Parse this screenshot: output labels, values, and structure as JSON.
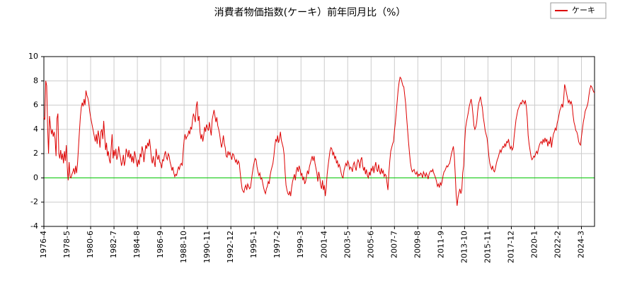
{
  "chart_data": {
    "type": "line",
    "title": "消費者物価指数(ケーキ）前年同月比（%）",
    "categories": [
      "1976-4",
      null,
      null,
      null,
      null,
      null,
      null,
      null,
      null,
      null,
      null,
      null,
      null,
      null,
      null,
      null,
      null,
      null,
      null,
      null,
      null,
      null,
      null,
      null,
      null,
      "1978-5",
      null,
      null,
      null,
      null,
      null,
      null,
      null,
      null,
      null,
      null,
      null,
      null,
      null,
      null,
      null,
      null,
      null,
      null,
      null,
      null,
      null,
      null,
      null,
      null,
      "1980-6",
      null,
      null,
      null,
      null,
      null,
      null,
      null,
      null,
      null,
      null,
      null,
      null,
      null,
      null,
      null,
      null,
      null,
      null,
      null,
      null,
      null,
      null,
      null,
      null,
      "1982-7",
      null,
      null,
      null,
      null,
      null,
      null,
      null,
      null,
      null,
      null,
      null,
      null,
      null,
      null,
      null,
      null,
      null,
      null,
      null,
      null,
      null,
      null,
      null,
      null,
      "1984-8",
      null,
      null,
      null,
      null,
      null,
      null,
      null,
      null,
      null,
      null,
      null,
      null,
      null,
      null,
      null,
      null,
      null,
      null,
      null,
      null,
      null,
      null,
      null,
      null,
      "1986-9",
      null,
      null,
      null,
      null,
      null,
      null,
      null,
      null,
      null,
      null,
      null,
      null,
      null,
      null,
      null,
      null,
      null,
      null,
      null,
      null,
      null,
      null,
      null,
      null,
      "1988-10",
      null,
      null,
      null,
      null,
      null,
      null,
      null,
      null,
      null,
      null,
      null,
      null,
      null,
      null,
      null,
      null,
      null,
      null,
      null,
      null,
      null,
      null,
      null,
      null,
      "1990-11",
      null,
      null,
      null,
      null,
      null,
      null,
      null,
      null,
      null,
      null,
      null,
      null,
      null,
      null,
      null,
      null,
      null,
      null,
      null,
      null,
      null,
      null,
      null,
      null,
      "1992-12",
      null,
      null,
      null,
      null,
      null,
      null,
      null,
      null,
      null,
      null,
      null,
      null,
      null,
      null,
      null,
      null,
      null,
      null,
      null,
      null,
      null,
      null,
      null,
      null,
      "1995-1",
      null,
      null,
      null,
      null,
      null,
      null,
      null,
      null,
      null,
      null,
      null,
      null,
      null,
      null,
      null,
      null,
      null,
      null,
      null,
      null,
      null,
      null,
      null,
      null,
      "1997-2",
      null,
      null,
      null,
      null,
      null,
      null,
      null,
      null,
      null,
      null,
      null,
      null,
      null,
      null,
      null,
      null,
      null,
      null,
      null,
      null,
      null,
      null,
      null,
      null,
      "1999-3",
      null,
      null,
      null,
      null,
      null,
      null,
      null,
      null,
      null,
      null,
      null,
      null,
      null,
      null,
      null,
      null,
      null,
      null,
      null,
      null,
      null,
      null,
      null,
      null,
      "2001-4",
      null,
      null,
      null,
      null,
      null,
      null,
      null,
      null,
      null,
      null,
      null,
      null,
      null,
      null,
      null,
      null,
      null,
      null,
      null,
      null,
      null,
      null,
      null,
      null,
      "2003-5",
      null,
      null,
      null,
      null,
      null,
      null,
      null,
      null,
      null,
      null,
      null,
      null,
      null,
      null,
      null,
      null,
      null,
      null,
      null,
      null,
      null,
      null,
      null,
      null,
      "2005-6",
      null,
      null,
      null,
      null,
      null,
      null,
      null,
      null,
      null,
      null,
      null,
      null,
      null,
      null,
      null,
      null,
      null,
      null,
      null,
      null,
      null,
      null,
      null,
      null,
      "2007-7",
      null,
      null,
      null,
      null,
      null,
      null,
      null,
      null,
      null,
      null,
      null,
      null,
      null,
      null,
      null,
      null,
      null,
      null,
      null,
      null,
      null,
      null,
      null,
      null,
      "2009-8",
      null,
      null,
      null,
      null,
      null,
      null,
      null,
      null,
      null,
      null,
      null,
      null,
      null,
      null,
      null,
      null,
      null,
      null,
      null,
      null,
      null,
      null,
      null,
      null,
      "2011-9",
      null,
      null,
      null,
      null,
      null,
      null,
      null,
      null,
      null,
      null,
      null,
      null,
      null,
      null,
      null,
      null,
      null,
      null,
      null,
      null,
      null,
      null,
      null,
      null,
      "2013-10",
      null,
      null,
      null,
      null,
      null,
      null,
      null,
      null,
      null,
      null,
      null,
      null,
      null,
      null,
      null,
      null,
      null,
      null,
      null,
      null,
      null,
      null,
      null,
      null,
      "2015-11",
      null,
      null,
      null,
      null,
      null,
      null,
      null,
      null,
      null,
      null,
      null,
      null,
      null,
      null,
      null,
      null,
      null,
      null,
      null,
      null,
      null,
      null,
      null,
      null,
      "2017-12",
      null,
      null,
      null,
      null,
      null,
      null,
      null,
      null,
      null,
      null,
      null,
      null,
      null,
      null,
      null,
      null,
      null,
      null,
      null,
      null,
      null,
      null,
      null,
      null,
      "2020-1",
      null,
      null,
      null,
      null,
      null,
      null,
      null,
      null,
      null,
      null,
      null,
      null,
      null,
      null,
      null,
      null,
      null,
      null,
      null,
      null,
      null,
      null,
      null,
      null,
      "2022-2",
      null,
      null,
      null,
      null,
      null,
      null,
      null,
      null,
      null,
      null,
      null,
      null,
      null,
      null,
      null,
      null,
      null,
      null,
      null,
      null,
      null,
      null,
      null,
      null,
      "2024-3",
      null,
      null,
      null,
      null,
      null,
      null,
      null,
      null,
      null,
      null,
      null,
      null,
      null,
      null
    ],
    "series": [
      {
        "name": "ケーキ",
        "color": "#dd0000",
        "values": [
          5.0,
          4.8,
          8.0,
          7.6,
          4.2,
          2.0,
          5.1,
          4.3,
          3.6,
          4.0,
          3.4,
          3.8,
          3.2,
          1.8,
          4.9,
          5.3,
          2.0,
          1.6,
          2.3,
          1.5,
          2.0,
          1.2,
          2.2,
          1.4,
          2.7,
          0.9,
          -0.2,
          1.3,
          0.1,
          0.0,
          0.3,
          0.5,
          0.8,
          0.3,
          1.0,
          0.4,
          1.2,
          2.5,
          3.8,
          5.0,
          5.8,
          6.2,
          5.9,
          6.5,
          6.0,
          7.2,
          6.8,
          6.6,
          6.2,
          5.5,
          5.0,
          4.6,
          4.2,
          3.8,
          3.4,
          3.0,
          3.6,
          2.8,
          3.9,
          3.4,
          2.5,
          3.8,
          4.0,
          3.2,
          4.7,
          3.5,
          2.3,
          2.9,
          1.8,
          2.2,
          1.5,
          1.2,
          2.5,
          3.6,
          1.6,
          2.3,
          1.8,
          2.4,
          1.5,
          1.8,
          2.6,
          2.0,
          1.6,
          1.0,
          1.3,
          1.9,
          1.0,
          1.4,
          2.4,
          2.1,
          1.7,
          2.3,
          1.6,
          2.0,
          1.3,
          1.8,
          1.2,
          2.2,
          1.8,
          1.3,
          0.9,
          1.5,
          1.1,
          2.0,
          1.7,
          2.6,
          2.2,
          1.3,
          2.0,
          2.7,
          2.4,
          2.9,
          2.6,
          3.2,
          2.5,
          1.6,
          1.2,
          1.8,
          1.3,
          0.9,
          2.4,
          1.8,
          1.5,
          1.9,
          1.3,
          1.2,
          0.8,
          1.5,
          1.4,
          1.9,
          2.2,
          1.7,
          1.5,
          2.0,
          1.8,
          1.3,
          1.0,
          0.6,
          0.9,
          0.4,
          0.1,
          0.3,
          0.2,
          0.6,
          0.9,
          0.7,
          1.1,
          1.2,
          1.0,
          2.2,
          3.1,
          3.6,
          3.2,
          3.4,
          3.5,
          3.9,
          3.6,
          4.2,
          4.0,
          4.8,
          5.3,
          5.0,
          4.6,
          5.9,
          6.3,
          4.7,
          5.1,
          3.8,
          3.2,
          3.6,
          3.0,
          3.5,
          4.2,
          3.8,
          4.4,
          4.1,
          3.9,
          4.6,
          4.0,
          3.5,
          4.8,
          5.2,
          5.6,
          5.1,
          4.6,
          5.0,
          4.3,
          4.0,
          3.6,
          3.0,
          2.5,
          2.9,
          3.5,
          2.8,
          2.5,
          1.8,
          1.7,
          2.2,
          1.9,
          2.1,
          1.8,
          1.5,
          2.0,
          1.9,
          1.6,
          1.3,
          1.5,
          1.1,
          1.4,
          1.2,
          0.4,
          -0.3,
          -0.9,
          -1.1,
          -1.2,
          -0.8,
          -0.6,
          -1.0,
          -0.5,
          -0.7,
          -0.9,
          -0.8,
          -0.2,
          0.4,
          0.9,
          1.3,
          1.6,
          1.5,
          0.9,
          0.5,
          0.2,
          0.4,
          -0.1,
          0.0,
          -0.4,
          -0.8,
          -1.1,
          -1.3,
          -0.9,
          -0.7,
          -0.3,
          -0.5,
          0.2,
          0.6,
          0.9,
          1.2,
          1.8,
          2.6,
          3.2,
          3.0,
          3.5,
          2.9,
          3.2,
          3.8,
          3.1,
          2.8,
          2.5,
          1.9,
          0.5,
          -0.6,
          -1.0,
          -1.3,
          -1.4,
          -1.1,
          -1.5,
          -0.8,
          -0.3,
          0.0,
          0.3,
          -0.2,
          0.6,
          0.9,
          0.5,
          1.0,
          0.7,
          0.2,
          0.4,
          -0.2,
          0.1,
          -0.5,
          -0.3,
          0.2,
          0.6,
          0.3,
          0.9,
          1.2,
          1.5,
          1.8,
          1.4,
          1.8,
          1.2,
          0.8,
          0.4,
          -0.3,
          0.5,
          0.1,
          -0.6,
          -0.9,
          -0.2,
          -1.0,
          -0.6,
          -1.5,
          -0.8,
          0.3,
          1.0,
          1.6,
          2.2,
          2.5,
          2.4,
          1.9,
          2.1,
          1.6,
          1.8,
          1.2,
          1.4,
          0.9,
          1.1,
          0.8,
          0.4,
          0.1,
          0.0,
          0.6,
          0.9,
          1.2,
          1.0,
          1.4,
          1.2,
          0.7,
          0.9,
          0.8,
          0.5,
          1.1,
          1.3,
          0.9,
          0.6,
          1.2,
          1.5,
          1.3,
          0.8,
          1.5,
          1.7,
          1.0,
          0.6,
          0.9,
          0.3,
          0.7,
          0.2,
          0.0,
          0.5,
          0.2,
          0.8,
          0.6,
          1.0,
          0.4,
          0.9,
          1.3,
          0.7,
          0.5,
          1.1,
          0.6,
          0.3,
          0.8,
          0.4,
          0.6,
          0.1,
          0.3,
          0.2,
          -0.4,
          -1.0,
          0.4,
          1.4,
          2.2,
          2.5,
          2.8,
          3.0,
          3.9,
          4.6,
          5.5,
          6.4,
          7.3,
          7.9,
          8.3,
          8.2,
          7.9,
          7.6,
          7.5,
          6.8,
          6.1,
          5.0,
          4.0,
          3.0,
          2.1,
          1.3,
          0.8,
          0.5,
          0.6,
          0.7,
          0.4,
          0.3,
          0.5,
          0.1,
          0.3,
          0.2,
          0.4,
          0.3,
          0.0,
          0.5,
          0.3,
          0.1,
          0.4,
          0.2,
          -0.1,
          0.3,
          0.5,
          0.6,
          0.5,
          0.7,
          0.4,
          0.2,
          0.0,
          -0.3,
          -0.7,
          -0.5,
          -0.8,
          -0.4,
          -0.6,
          -0.3,
          0.2,
          0.5,
          0.6,
          0.8,
          1.0,
          0.9,
          1.1,
          1.2,
          1.6,
          2.0,
          2.3,
          2.6,
          1.8,
          0.3,
          -1.4,
          -2.3,
          -1.6,
          -1.2,
          -0.9,
          -1.3,
          -1.0,
          0.4,
          1.0,
          2.8,
          4.1,
          4.6,
          5.0,
          5.4,
          5.9,
          6.2,
          6.5,
          6.0,
          5.2,
          4.3,
          4.0,
          4.2,
          4.6,
          5.5,
          6.1,
          6.4,
          6.7,
          6.2,
          5.8,
          5.0,
          4.5,
          3.9,
          3.6,
          3.3,
          2.6,
          1.8,
          1.2,
          0.9,
          0.7,
          1.0,
          0.6,
          0.5,
          0.8,
          1.2,
          1.5,
          1.7,
          2.0,
          2.3,
          2.1,
          2.4,
          2.6,
          2.5,
          2.8,
          2.6,
          3.0,
          2.9,
          3.2,
          2.7,
          2.4,
          2.6,
          2.3,
          2.5,
          3.4,
          4.1,
          4.8,
          5.2,
          5.6,
          5.8,
          6.0,
          6.2,
          6.1,
          6.4,
          6.3,
          6.1,
          6.4,
          5.9,
          5.0,
          3.5,
          2.8,
          2.3,
          1.8,
          1.5,
          1.6,
          1.8,
          1.7,
          2.0,
          2.2,
          2.0,
          2.4,
          2.7,
          2.9,
          3.0,
          2.8,
          3.2,
          2.9,
          3.3,
          3.0,
          3.2,
          2.6,
          3.0,
          2.8,
          3.4,
          2.5,
          3.1,
          3.6,
          3.8,
          4.1,
          3.9,
          4.5,
          4.8,
          5.2,
          5.6,
          5.8,
          6.1,
          5.8,
          6.5,
          7.7,
          7.4,
          7.0,
          6.6,
          6.2,
          6.4,
          6.1,
          6.3,
          6.0,
          5.2,
          4.6,
          4.3,
          3.9,
          3.8,
          3.5,
          3.0,
          2.8,
          2.7,
          3.4,
          4.0,
          4.6,
          5.0,
          5.5,
          5.7,
          5.9,
          6.2,
          6.8,
          7.3,
          7.6,
          7.5,
          7.3,
          7.1,
          7.0
        ]
      }
    ],
    "ylim": [
      -4,
      10
    ],
    "yticks": [
      -4,
      -2,
      0,
      2,
      4,
      6,
      8,
      10
    ],
    "grid": true,
    "zero_line_color": "#00cc00",
    "legend": "top-right"
  }
}
